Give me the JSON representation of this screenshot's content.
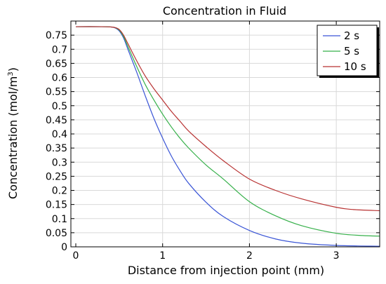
{
  "chart_data": {
    "type": "line",
    "title": "Concentration in Fluid",
    "xlabel": "Distance from injection point (mm)",
    "ylabel": "Concentration (mol/m",
    "ylabel_sup": "3",
    "ylabel_close": ")",
    "xlim": [
      0,
      3.5
    ],
    "ylim": [
      0,
      0.8
    ],
    "xticks": [
      "0",
      "1",
      "2",
      "3"
    ],
    "yticks": [
      "0",
      "0.05",
      "0.1",
      "0.15",
      "0.2",
      "0.25",
      "0.3",
      "0.35",
      "0.4",
      "0.45",
      "0.5",
      "0.55",
      "0.6",
      "0.65",
      "0.7",
      "0.75"
    ],
    "grid": true,
    "legend_position": "top-right",
    "series": [
      {
        "name": "2 s",
        "color": "#3a55d6",
        "x": [
          0,
          0.3,
          0.4,
          0.45,
          0.5,
          0.55,
          0.6,
          0.7,
          0.8,
          0.9,
          1.0,
          1.1,
          1.2,
          1.3,
          1.5,
          1.7,
          2.0,
          2.3,
          2.6,
          3.0,
          3.5
        ],
        "y": [
          0.78,
          0.78,
          0.779,
          0.776,
          0.765,
          0.74,
          0.7,
          0.62,
          0.535,
          0.455,
          0.385,
          0.322,
          0.27,
          0.225,
          0.158,
          0.107,
          0.058,
          0.028,
          0.013,
          0.005,
          0.002
        ]
      },
      {
        "name": "5 s",
        "color": "#36b04a",
        "x": [
          0,
          0.3,
          0.4,
          0.45,
          0.5,
          0.55,
          0.6,
          0.7,
          0.8,
          0.9,
          1.0,
          1.1,
          1.2,
          1.3,
          1.5,
          1.7,
          2.0,
          2.3,
          2.6,
          3.0,
          3.3,
          3.5
        ],
        "y": [
          0.78,
          0.78,
          0.779,
          0.777,
          0.768,
          0.745,
          0.71,
          0.64,
          0.575,
          0.52,
          0.47,
          0.425,
          0.385,
          0.35,
          0.29,
          0.24,
          0.16,
          0.11,
          0.075,
          0.048,
          0.04,
          0.038
        ]
      },
      {
        "name": "10 s",
        "color": "#b83232",
        "x": [
          0,
          0.3,
          0.4,
          0.45,
          0.5,
          0.55,
          0.6,
          0.7,
          0.8,
          0.9,
          1.0,
          1.1,
          1.2,
          1.3,
          1.5,
          1.7,
          2.0,
          2.3,
          2.6,
          3.0,
          3.2,
          3.5
        ],
        "y": [
          0.78,
          0.78,
          0.779,
          0.777,
          0.77,
          0.75,
          0.72,
          0.66,
          0.605,
          0.56,
          0.52,
          0.48,
          0.445,
          0.41,
          0.355,
          0.305,
          0.24,
          0.2,
          0.17,
          0.14,
          0.132,
          0.128
        ]
      }
    ]
  }
}
